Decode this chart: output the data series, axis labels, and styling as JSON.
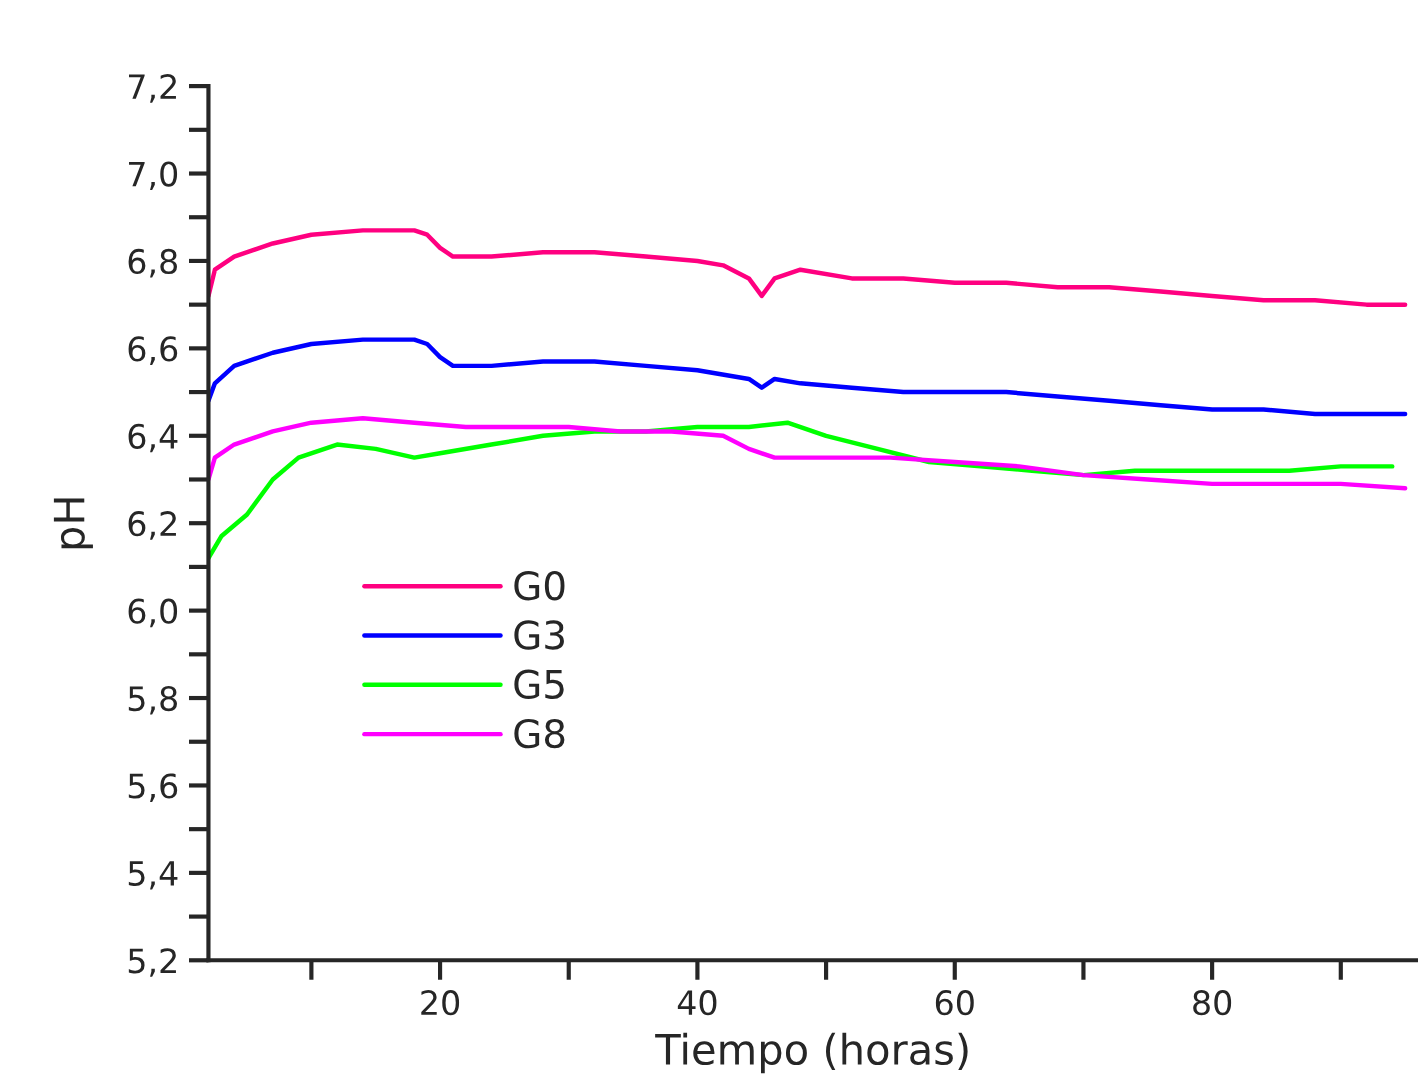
{
  "chart_data": {
    "type": "line",
    "xlabel": "Tiempo (horas)",
    "ylabel": "pH",
    "xlim": [
      2,
      96
    ],
    "xticks": [
      {
        "value": 10,
        "label": null
      },
      20,
      {
        "value": 30,
        "label": null
      },
      40,
      {
        "value": 50,
        "label": null
      },
      60,
      {
        "value": 70,
        "label": null
      },
      80,
      {
        "value": 90,
        "label": null
      }
    ],
    "ylim": [
      5.2,
      7.2
    ],
    "yticks": [
      {
        "value": 5.2,
        "label": "5,2"
      },
      {
        "value": 5.3,
        "label": null
      },
      {
        "value": 5.4,
        "label": "5,4"
      },
      {
        "value": 5.5,
        "label": null
      },
      {
        "value": 5.6,
        "label": "5,6"
      },
      {
        "value": 5.7,
        "label": null
      },
      {
        "value": 5.8,
        "label": "5,8"
      },
      {
        "value": 5.9,
        "label": null
      },
      {
        "value": 6.0,
        "label": "6,0"
      },
      {
        "value": 6.1,
        "label": null
      },
      {
        "value": 6.2,
        "label": "6,2"
      },
      {
        "value": 6.3,
        "label": null
      },
      {
        "value": 6.4,
        "label": "6,4"
      },
      {
        "value": 6.5,
        "label": null
      },
      {
        "value": 6.6,
        "label": "6,6"
      },
      {
        "value": 6.7,
        "label": null
      },
      {
        "value": 6.8,
        "label": "6,8"
      },
      {
        "value": 6.9,
        "label": null
      },
      {
        "value": 7.0,
        "label": "7,0"
      },
      {
        "value": 7.1,
        "label": null
      },
      {
        "value": 7.2,
        "label": "7,2"
      }
    ],
    "grid": false,
    "legend": "center left",
    "line_style": "solid",
    "marker": "none",
    "series": [
      {
        "name": "G0",
        "color": "#ff0080",
        "x": [
          2,
          2.5,
          4,
          7,
          10,
          14,
          18,
          19,
          20,
          21,
          24,
          28,
          32,
          36,
          40,
          42,
          44,
          45,
          46,
          48,
          52,
          56,
          60,
          64,
          68,
          72,
          76,
          80,
          84,
          88,
          92,
          95
        ],
        "values": [
          6.72,
          6.78,
          6.81,
          6.84,
          6.86,
          6.87,
          6.87,
          6.86,
          6.83,
          6.81,
          6.81,
          6.82,
          6.82,
          6.81,
          6.8,
          6.79,
          6.76,
          6.72,
          6.76,
          6.78,
          6.76,
          6.76,
          6.75,
          6.75,
          6.74,
          6.74,
          6.73,
          6.72,
          6.71,
          6.71,
          6.7,
          6.7
        ]
      },
      {
        "name": "G3",
        "color": "#0000ff",
        "x": [
          2,
          2.5,
          4,
          7,
          10,
          14,
          18,
          19,
          20,
          21,
          24,
          28,
          32,
          36,
          40,
          44,
          45,
          46,
          48,
          52,
          56,
          60,
          64,
          68,
          72,
          76,
          80,
          84,
          88,
          92,
          95
        ],
        "values": [
          6.48,
          6.52,
          6.56,
          6.59,
          6.61,
          6.62,
          6.62,
          6.61,
          6.58,
          6.56,
          6.56,
          6.57,
          6.57,
          6.56,
          6.55,
          6.53,
          6.51,
          6.53,
          6.52,
          6.51,
          6.5,
          6.5,
          6.5,
          6.49,
          6.48,
          6.47,
          6.46,
          6.46,
          6.45,
          6.45,
          6.45
        ]
      },
      {
        "name": "G5",
        "color": "#00ff00",
        "x": [
          2,
          3,
          5,
          7,
          9,
          12,
          15,
          18,
          20,
          24,
          28,
          32,
          36,
          40,
          44,
          47,
          50,
          54,
          58,
          62,
          66,
          70,
          74,
          78,
          82,
          86,
          90,
          94
        ],
        "values": [
          6.12,
          6.17,
          6.22,
          6.3,
          6.35,
          6.38,
          6.37,
          6.35,
          6.36,
          6.38,
          6.4,
          6.41,
          6.41,
          6.42,
          6.42,
          6.43,
          6.4,
          6.37,
          6.34,
          6.33,
          6.32,
          6.31,
          6.32,
          6.32,
          6.32,
          6.32,
          6.33,
          6.33
        ]
      },
      {
        "name": "G8",
        "color": "#ff00ff",
        "x": [
          2,
          2.5,
          4,
          7,
          10,
          14,
          18,
          22,
          26,
          30,
          34,
          38,
          42,
          44,
          46,
          50,
          55,
          60,
          65,
          70,
          75,
          80,
          85,
          90,
          95
        ],
        "values": [
          6.3,
          6.35,
          6.38,
          6.41,
          6.43,
          6.44,
          6.43,
          6.42,
          6.42,
          6.42,
          6.41,
          6.41,
          6.4,
          6.37,
          6.35,
          6.35,
          6.35,
          6.34,
          6.33,
          6.31,
          6.3,
          6.29,
          6.29,
          6.29,
          6.28
        ]
      }
    ]
  }
}
